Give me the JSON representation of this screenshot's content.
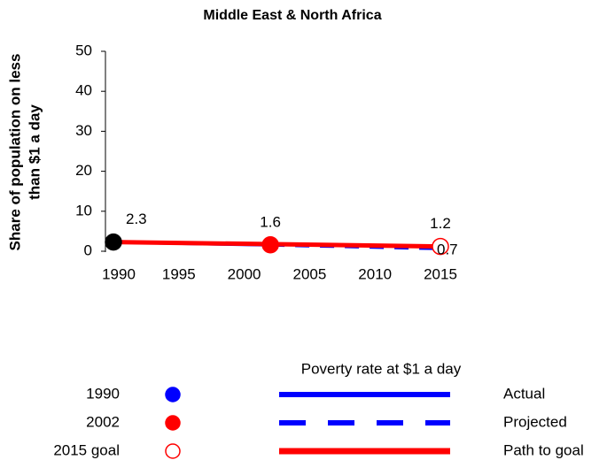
{
  "chart_data": {
    "type": "line",
    "title": "Middle East & North Africa",
    "ylabel": [
      "Share of population on less",
      "than $1 a day"
    ],
    "xlim": [
      1990,
      2015
    ],
    "xticks": [
      1990,
      1995,
      2000,
      2005,
      2010,
      2015
    ],
    "ylim": [
      0,
      50
    ],
    "yticks": [
      0,
      10,
      20,
      30,
      40,
      50
    ],
    "series": [
      {
        "name": "Actual",
        "color": "#0000ff",
        "dashed": false,
        "x": [
          1990,
          2002
        ],
        "values": [
          2.3,
          1.6
        ]
      },
      {
        "name": "Projected",
        "color": "#0000ff",
        "dashed": true,
        "x": [
          2002,
          2015
        ],
        "values": [
          1.6,
          0.7
        ]
      },
      {
        "name": "Path to goal",
        "color": "#ff0000",
        "dashed": false,
        "x": [
          1990,
          2015
        ],
        "values": [
          2.3,
          1.2
        ]
      }
    ],
    "points": [
      {
        "name": "1990",
        "x": 1990,
        "value": 2.3,
        "color": "#000000",
        "legend_color": "#0000ff",
        "filled": true
      },
      {
        "name": "2002",
        "x": 2002,
        "value": 1.6,
        "color": "#ff0000",
        "legend_color": "#ff0000",
        "filled": true
      },
      {
        "name": "2015 goal",
        "x": 2015,
        "value": 1.2,
        "color": "#ff0000",
        "legend_color": "#ff0000",
        "filled": false
      }
    ],
    "legend_title": "Poverty rate at $1 a day"
  }
}
